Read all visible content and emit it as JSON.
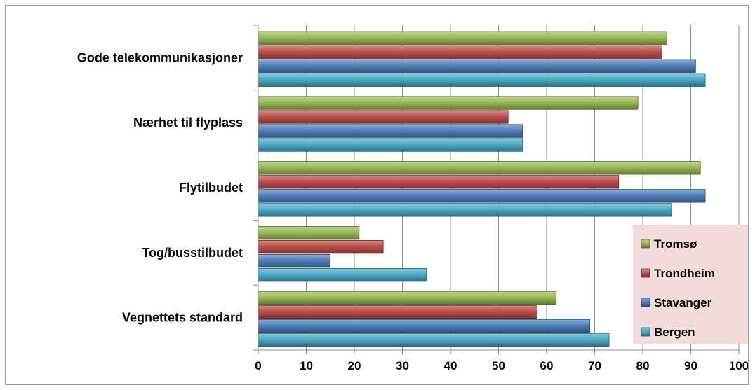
{
  "chart_data": {
    "type": "bar",
    "orientation": "horizontal",
    "categories": [
      "Gode telekommunikasjoner",
      "Nærhet til flyplass",
      "Flytilbudet",
      "Tog/busstilbudet",
      "Vegnettets standard"
    ],
    "series": [
      {
        "name": "Tromsø",
        "color": "#9BBB59",
        "values": [
          85,
          79,
          92,
          21,
          62
        ]
      },
      {
        "name": "Trondheim",
        "color": "#C0504D",
        "values": [
          84,
          52,
          75,
          26,
          58
        ]
      },
      {
        "name": "Stavanger",
        "color": "#4F81BD",
        "values": [
          91,
          55,
          93,
          15,
          69
        ]
      },
      {
        "name": "Bergen",
        "color": "#4BACC6",
        "values": [
          93,
          55,
          86,
          35,
          73
        ]
      }
    ],
    "xlim": [
      0,
      100
    ],
    "xticks": [
      "0",
      "10",
      "20",
      "30",
      "40",
      "50",
      "60",
      "70",
      "80",
      "90",
      "100"
    ],
    "grid": "vertical",
    "legend_position": "bottom-right",
    "legend_order": [
      "Tromsø",
      "Trondheim",
      "Stavanger",
      "Bergen"
    ],
    "legend_background": "#F2DCDB"
  }
}
